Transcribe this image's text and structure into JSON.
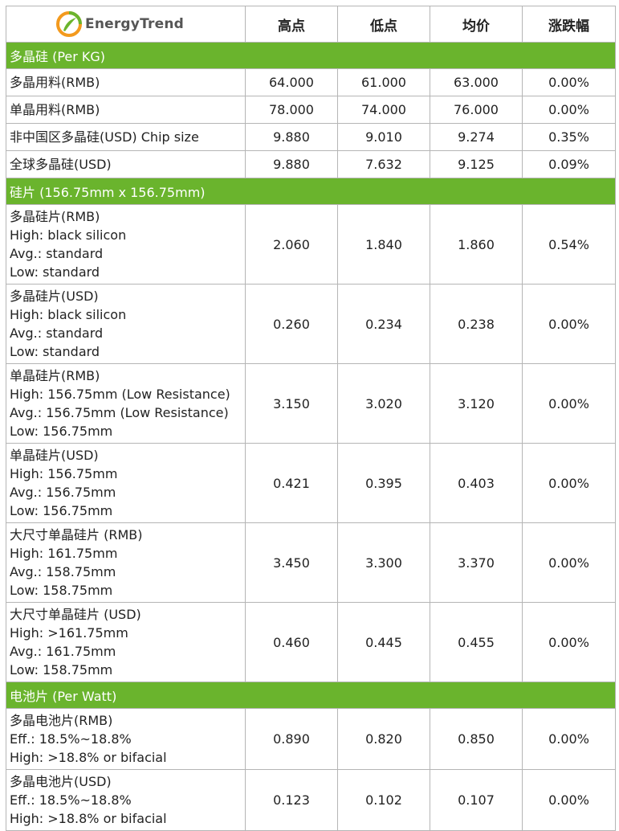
{
  "header": {
    "brand": "EnergyTrend",
    "columns": [
      "高点",
      "低点",
      "均价",
      "涨跌幅"
    ]
  },
  "sections": [
    {
      "title": "多晶硅 (Per KG)",
      "rows": [
        {
          "lines": [
            "多晶用料(RMB)"
          ],
          "high": "64.000",
          "low": "61.000",
          "avg": "63.000",
          "change": "0.00%"
        },
        {
          "lines": [
            "单晶用料(RMB)"
          ],
          "high": "78.000",
          "low": "74.000",
          "avg": "76.000",
          "change": "0.00%"
        },
        {
          "lines": [
            "非中国区多晶硅(USD) Chip size"
          ],
          "high": "9.880",
          "low": "9.010",
          "avg": "9.274",
          "change": "0.35%"
        },
        {
          "lines": [
            "全球多晶硅(USD)"
          ],
          "high": "9.880",
          "low": "7.632",
          "avg": "9.125",
          "change": "0.09%"
        }
      ]
    },
    {
      "title": "硅片 (156.75mm x 156.75mm)",
      "rows": [
        {
          "lines": [
            "多晶硅片(RMB)",
            "High: black silicon",
            "Avg.: standard",
            "Low: standard"
          ],
          "high": "2.060",
          "low": "1.840",
          "avg": "1.860",
          "change": "0.54%"
        },
        {
          "lines": [
            "多晶硅片(USD)",
            "High: black silicon",
            "Avg.: standard",
            "Low: standard"
          ],
          "high": "0.260",
          "low": "0.234",
          "avg": "0.238",
          "change": "0.00%"
        },
        {
          "lines": [
            "单晶硅片(RMB)",
            "High: 156.75mm (Low Resistance)",
            "Avg.: 156.75mm (Low Resistance)",
            "Low: 156.75mm"
          ],
          "high": "3.150",
          "low": "3.020",
          "avg": "3.120",
          "change": "0.00%"
        },
        {
          "lines": [
            "单晶硅片(USD)",
            "High: 156.75mm",
            "Avg.: 156.75mm",
            "Low: 156.75mm"
          ],
          "high": "0.421",
          "low": "0.395",
          "avg": "0.403",
          "change": "0.00%"
        },
        {
          "lines": [
            "大尺寸单晶硅片 (RMB)",
            "High: 161.75mm",
            "Avg.: 158.75mm",
            "Low: 158.75mm"
          ],
          "high": "3.450",
          "low": "3.300",
          "avg": "3.370",
          "change": "0.00%"
        },
        {
          "lines": [
            "大尺寸单晶硅片 (USD)",
            "High: >161.75mm",
            "Avg.: 161.75mm",
            "Low: 158.75mm"
          ],
          "high": "0.460",
          "low": "0.445",
          "avg": "0.455",
          "change": "0.00%"
        }
      ]
    },
    {
      "title": "电池片 (Per Watt)",
      "rows": [
        {
          "lines": [
            "多晶电池片(RMB)",
            "Eff.: 18.5%~18.8%",
            "High: >18.8% or bifacial"
          ],
          "high": "0.890",
          "low": "0.820",
          "avg": "0.850",
          "change": "0.00%"
        },
        {
          "lines": [
            "多晶电池片(USD)",
            "Eff.: 18.5%~18.8%",
            "High: >18.8% or bifacial"
          ],
          "high": "0.123",
          "low": "0.102",
          "avg": "0.107",
          "change": "0.00%"
        }
      ]
    }
  ]
}
